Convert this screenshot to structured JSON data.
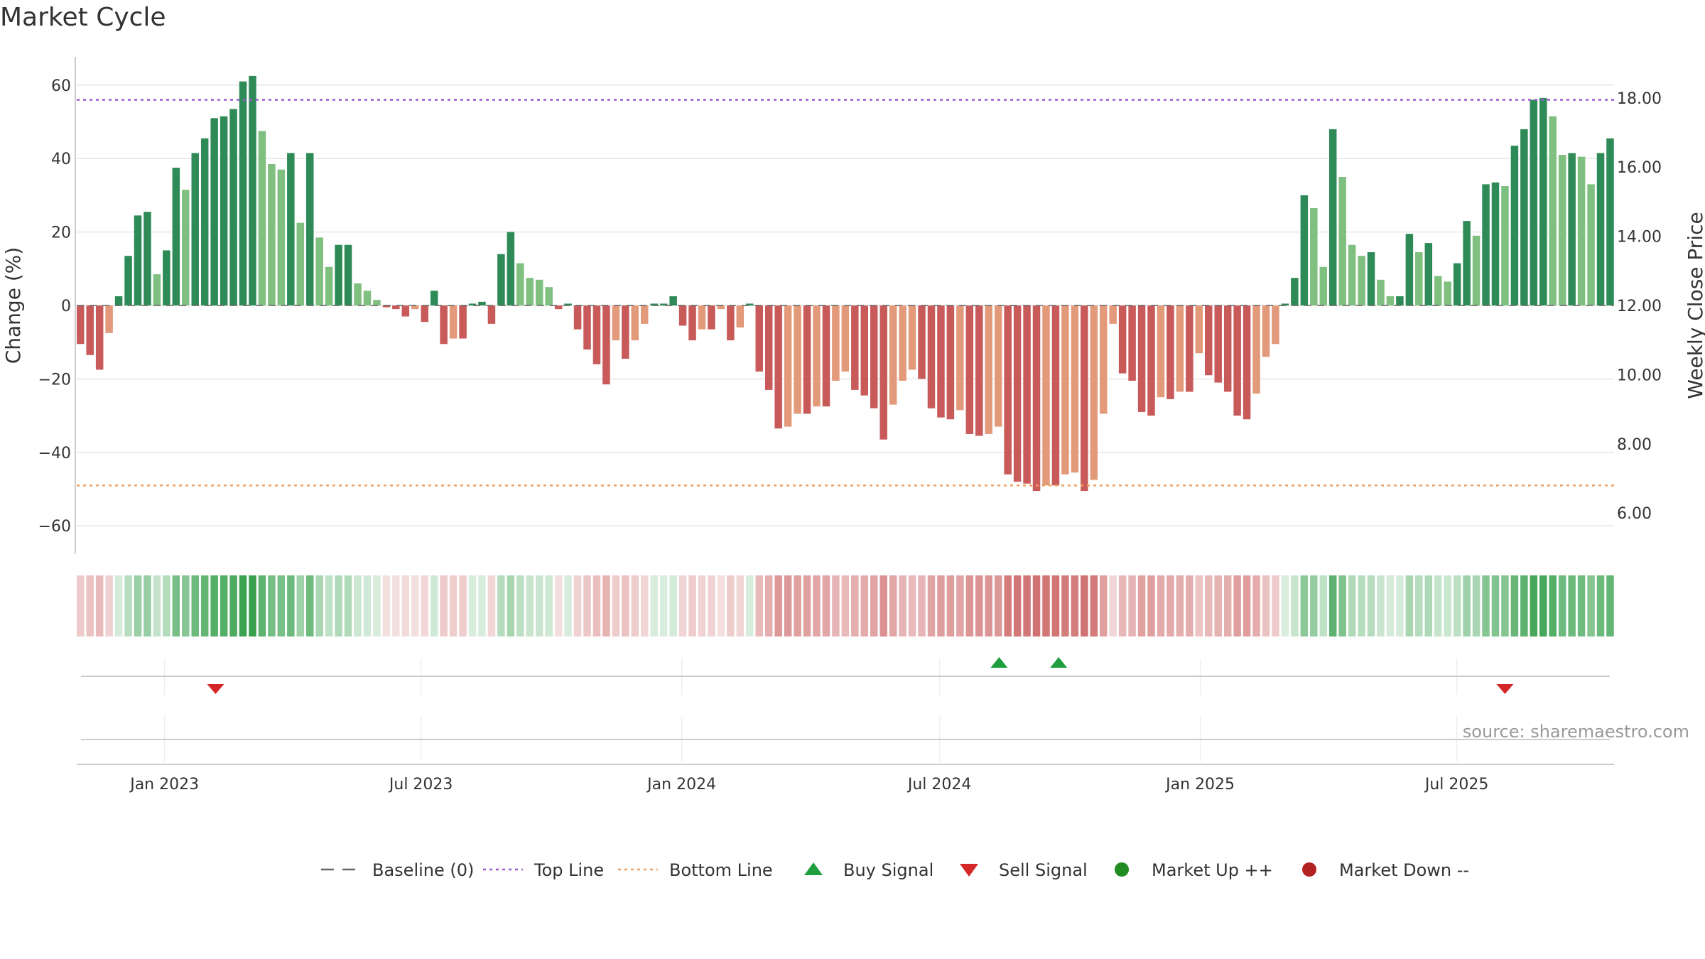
{
  "title": "Market Cycle",
  "source": "source: sharemaestro.com",
  "colors": {
    "up_strong": "#2e8b57",
    "up_light": "#7fbf7f",
    "down_strong": "#c85a5a",
    "down_light": "#e39a7b",
    "top_line": "#9b59d0",
    "bottom_line": "#f0a060",
    "buy": "#1f9e3f",
    "sell": "#d62728",
    "market_up": "#228b22",
    "market_down": "#b22222",
    "baseline": "#666666",
    "grid": "#e6e6e6"
  },
  "legend": [
    {
      "label": "Baseline (0)",
      "kind": "dash",
      "color_key": "baseline"
    },
    {
      "label": "Top Line",
      "kind": "dot",
      "color_key": "top_line"
    },
    {
      "label": "Bottom Line",
      "kind": "dot",
      "color_key": "bottom_line"
    },
    {
      "label": "Buy Signal",
      "kind": "tri-up",
      "color_key": "buy"
    },
    {
      "label": "Sell Signal",
      "kind": "tri-down",
      "color_key": "sell"
    },
    {
      "label": "Market Up ++",
      "kind": "circle",
      "color_key": "market_up"
    },
    {
      "label": "Market Down --",
      "kind": "circle",
      "color_key": "market_down"
    }
  ],
  "chart_data": {
    "type": "bar",
    "ylabel": "Change (%)",
    "y2label": "Weekly Close Price",
    "ylim": [
      -68,
      68
    ],
    "yticks": [
      60,
      40,
      20,
      0,
      -20,
      -40,
      -60
    ],
    "ytick_labels": [
      "60",
      "40",
      "20",
      "0",
      "−20",
      "−40",
      "−60"
    ],
    "y2lim": [
      5.2,
      19.2
    ],
    "y2ticks": [
      18,
      16,
      14,
      12,
      10,
      8,
      6
    ],
    "y2tick_labels": [
      "18.00",
      "16.00",
      "14.00",
      "12.00",
      "10.00",
      "8.00",
      "6.00"
    ],
    "top_line": 56,
    "bottom_line": -49,
    "x_start": "2022-10-31",
    "x_end": "2025-10-20",
    "xticks": [
      {
        "date": "2023-01-01",
        "label": "Jan 2023"
      },
      {
        "date": "2023-07-01",
        "label": "Jul 2023"
      },
      {
        "date": "2024-01-01",
        "label": "Jan 2024"
      },
      {
        "date": "2024-07-01",
        "label": "Jul 2024"
      },
      {
        "date": "2025-01-01",
        "label": "Jan 2025"
      },
      {
        "date": "2025-07-01",
        "label": "Jul 2025"
      }
    ],
    "values": [
      -10.5,
      -13.5,
      -17.5,
      -7.5,
      2.5,
      13.5,
      24.5,
      25.5,
      8.5,
      15.0,
      37.5,
      31.5,
      41.5,
      45.5,
      51.0,
      51.5,
      53.5,
      61.0,
      62.5,
      47.5,
      38.5,
      37.0,
      41.5,
      22.5,
      41.5,
      18.5,
      10.5,
      16.5,
      16.5,
      6.0,
      4.0,
      1.5,
      -0.5,
      -1.0,
      -3.0,
      -1.0,
      -4.5,
      4.0,
      -10.5,
      -9.0,
      -9.0,
      0.5,
      1.0,
      -5.0,
      14.0,
      20.0,
      11.5,
      7.5,
      7.0,
      5.0,
      -1.0,
      0.5,
      -6.5,
      -12.0,
      -16.0,
      -21.5,
      -9.5,
      -14.5,
      -9.5,
      -5.0,
      0.5,
      0.5,
      2.5,
      -5.5,
      -9.5,
      -6.5,
      -6.5,
      -1.0,
      -9.5,
      -6.0,
      0.5,
      -18.0,
      -23.0,
      -33.5,
      -33.0,
      -29.5,
      -29.5,
      -27.5,
      -27.5,
      -20.5,
      -18.0,
      -23.0,
      -24.5,
      -28.0,
      -36.5,
      -27.0,
      -20.5,
      -17.5,
      -20.0,
      -28.0,
      -30.5,
      -31.0,
      -28.5,
      -35.0,
      -35.5,
      -35.0,
      -33.0,
      -46.0,
      -48.0,
      -48.5,
      -50.5,
      -49.0,
      -49.0,
      -46.0,
      -45.5,
      -50.5,
      -47.5,
      -29.5,
      -5.0,
      -18.5,
      -20.5,
      -29.0,
      -30.0,
      -25.0,
      -25.5,
      -23.5,
      -23.5,
      -13.0,
      -19.0,
      -21.0,
      -23.5,
      -30.0,
      -31.0,
      -24.0,
      -14.0,
      -10.5,
      0.5,
      7.5,
      30.0,
      26.5,
      10.5,
      48.0,
      35.0,
      16.5,
      13.5,
      14.5,
      7.0,
      2.5,
      2.5,
      19.5,
      14.5,
      17.0,
      8.0,
      6.5,
      11.5,
      23.0,
      19.0,
      33.0,
      33.5,
      32.5,
      43.5,
      48.0,
      56.0,
      56.5,
      51.5,
      41.0,
      41.5,
      40.5,
      33.0,
      41.5,
      45.5
    ],
    "buy_signals": [
      "2024-08-12",
      "2024-09-23"
    ],
    "sell_signals": [
      "2023-02-06",
      "2025-08-04"
    ]
  }
}
